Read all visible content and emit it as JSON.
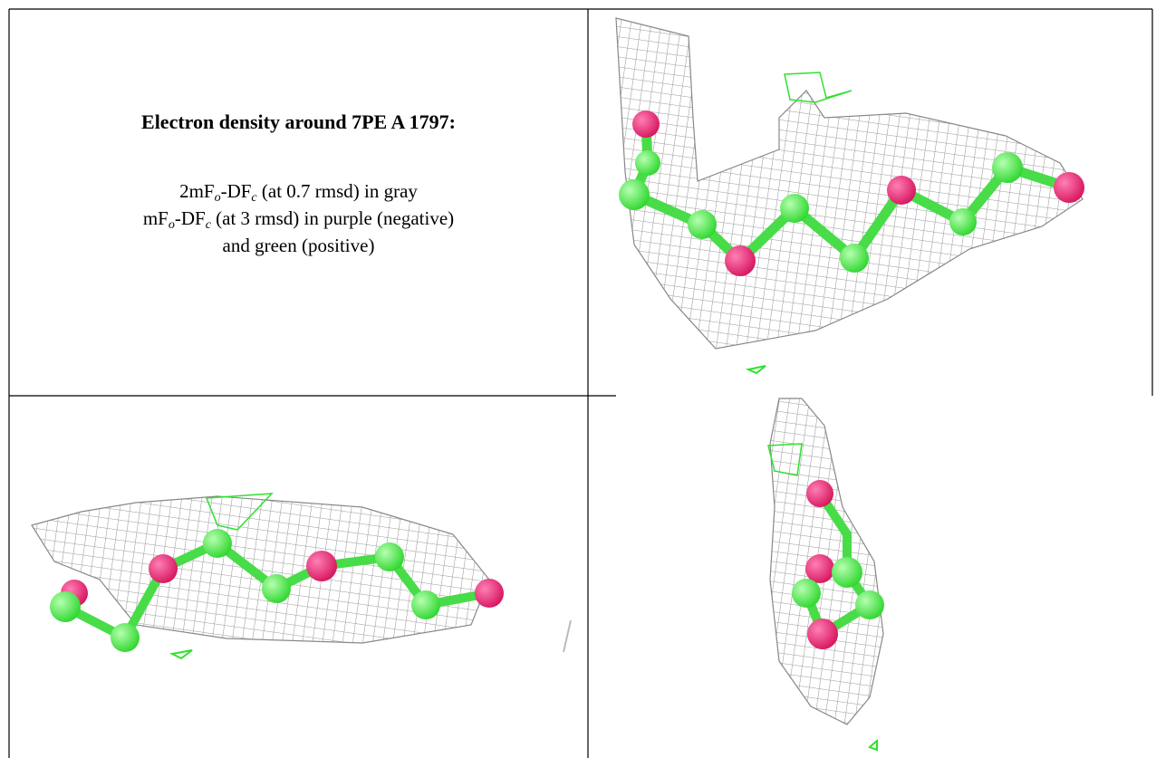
{
  "caption": {
    "title": "Electron density around 7PE A 1797:",
    "line1": [
      "2mF",
      "o",
      "-DF",
      "c",
      " (at 0.7 rmsd) in gray"
    ],
    "line2": [
      "mF",
      "o",
      "-DF",
      "c",
      " (at 3 rmsd) in purple (negative)"
    ],
    "line3": "and green (positive)"
  }
}
